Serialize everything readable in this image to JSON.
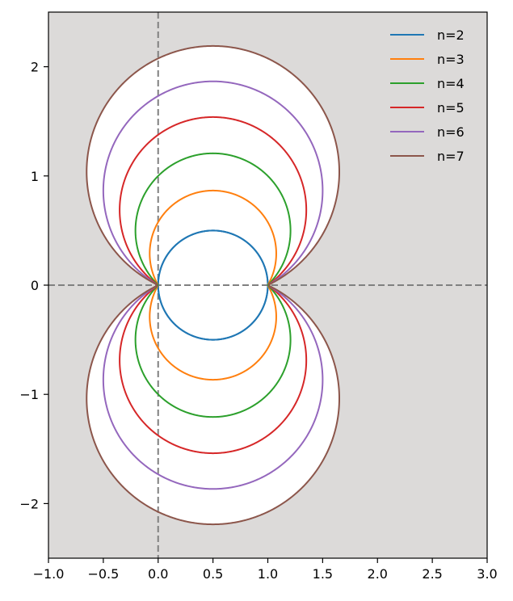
{
  "chart_data": {
    "type": "line",
    "title": "",
    "xlabel": "",
    "ylabel": "",
    "xlim": [
      -1.0,
      3.0
    ],
    "ylim": [
      -2.5,
      2.5
    ],
    "xticks": [
      -1.0,
      -0.5,
      0.0,
      0.5,
      1.0,
      1.5,
      2.0,
      2.5,
      3.0
    ],
    "xtick_labels": [
      "−1.0",
      "−0.5",
      "0.0",
      "0.5",
      "1.0",
      "1.5",
      "2.0",
      "2.5",
      "3.0"
    ],
    "yticks": [
      2,
      1,
      0,
      -1,
      -2
    ],
    "ytick_labels": [
      "2",
      "1",
      "0",
      "−1",
      "−2"
    ],
    "grid": false,
    "legend_position": "top-right",
    "background_color": "#dcdad9",
    "shaded_region_color": "#ffffff",
    "reference_lines": [
      {
        "orientation": "vertical",
        "value": 0,
        "style": "dashed",
        "color": "#808080"
      },
      {
        "orientation": "horizontal",
        "value": 0,
        "style": "dashed",
        "color": "#808080"
      }
    ],
    "description": "Each series is a pair of circular arcs through (0,0) and (1,0), mirrored about y=0; circle centers at (0.5, ±yc) with radius r.",
    "series": [
      {
        "name": "n=2",
        "color": "#1f77b4",
        "center_x": 0.5,
        "center_y": 0.0,
        "radius": 0.5
      },
      {
        "name": "n=3",
        "color": "#ff7f0e",
        "center_x": 0.5,
        "center_y": 0.289,
        "radius": 0.577
      },
      {
        "name": "n=4",
        "color": "#2ca02c",
        "center_x": 0.5,
        "center_y": 0.5,
        "radius": 0.707
      },
      {
        "name": "n=5",
        "color": "#d62728",
        "center_x": 0.5,
        "center_y": 0.688,
        "radius": 0.851
      },
      {
        "name": "n=6",
        "color": "#9467bd",
        "center_x": 0.5,
        "center_y": 0.866,
        "radius": 1.0
      },
      {
        "name": "n=7",
        "color": "#8c564b",
        "center_x": 0.5,
        "center_y": 1.038,
        "radius": 1.152
      }
    ]
  }
}
